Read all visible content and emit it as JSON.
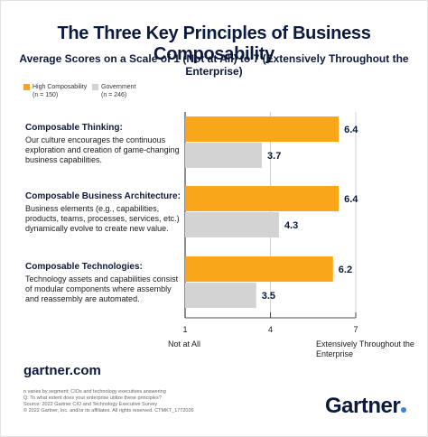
{
  "title": "The Three Key Principles of Business Composability",
  "subtitle": "Average Scores on a Scale of 1 (Not at All) to 7 (Extensively Throughout the Enterprise)",
  "legend": {
    "high": {
      "name": "High Composability",
      "n": "(n = 150)"
    },
    "gov": {
      "name": "Government",
      "n": "(n = 246)"
    }
  },
  "categories": [
    {
      "title": "Composable Thinking:",
      "desc": "Our culture encourages the continuous exploration and creation of game-changing business capabilities."
    },
    {
      "title": "Composable Business Architecture:",
      "desc": "Business elements (e.g., capabilities, products, teams, processes, services, etc.) dynamically evolve to create new value."
    },
    {
      "title": "Composable Technologies:",
      "desc": "Technology assets and capabilities consist of modular components where assembly and reassembly are automated."
    }
  ],
  "axis": {
    "left_label": "Not at All",
    "right_label": "Extensively Throughout the Enterprise"
  },
  "chart_data": {
    "type": "bar",
    "orientation": "horizontal",
    "categories": [
      "Composable Thinking:",
      "Composable Business Architecture:",
      "Composable Technologies:"
    ],
    "series": [
      {
        "name": "High Composability",
        "values": [
          6.4,
          6.4,
          6.2
        ],
        "color": "#f9a61a"
      },
      {
        "name": "Government",
        "values": [
          3.7,
          4.3,
          3.5
        ],
        "color": "#d3d3d3"
      }
    ],
    "value_labels": [
      "6.4",
      "3.7",
      "6.4",
      "4.3",
      "6.2",
      "3.5"
    ],
    "xlim": [
      1,
      7
    ],
    "ticks": [
      1,
      4,
      7
    ],
    "tick_labels": [
      "1",
      "4",
      "7"
    ],
    "title": "The Three Key Principles of Business Composability"
  },
  "footer": {
    "site": "gartner.com",
    "notes": [
      "n varies by segment; CIOs and technology executives answering",
      "Q: To what extent does your enterprise utilize these principles?",
      "Source: 2022 Gartner CIO and Technology Executive Survey",
      "© 2022 Gartner, Inc. and/or its affiliates. All rights reserved. CTMKT_1772026"
    ],
    "logo": "Gartner"
  }
}
